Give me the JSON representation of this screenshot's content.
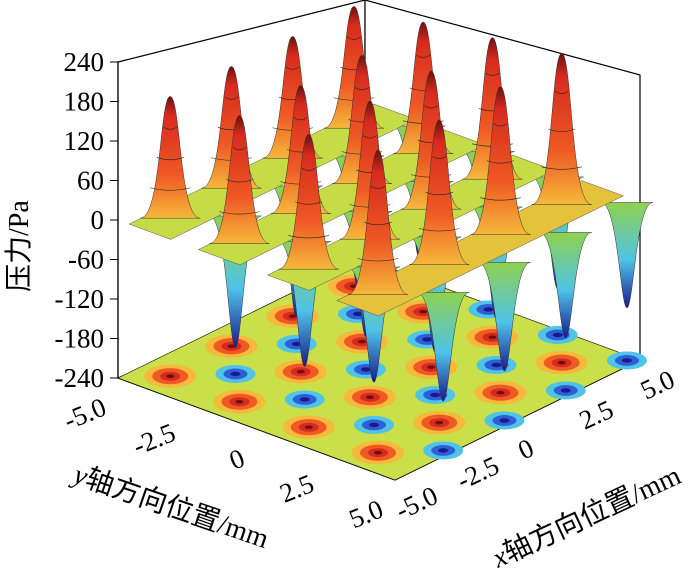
{
  "chart_data": {
    "type": "surface3d",
    "zlabel": "压力/Pa",
    "xlabel_var": "x",
    "xlabel_rest": "轴方向位置/mm",
    "ylabel_var": "y",
    "ylabel_rest": "轴方向位置/mm",
    "z_ticks": [
      "240",
      "180",
      "120",
      "60",
      "0",
      "-60",
      "-120",
      "-180",
      "-240"
    ],
    "x_ticks": [
      "-5.0",
      "-2.5",
      "0",
      "2.5",
      "5.0"
    ],
    "y_ticks": [
      "-5.0",
      "-2.5",
      "0",
      "2.5",
      "5.0"
    ],
    "xlim": [
      -5.0,
      5.0
    ],
    "ylim": [
      -5.0,
      5.0
    ],
    "zlim": [
      -240,
      240
    ],
    "peak_rows_y": [
      -4.0,
      -1.5,
      1.0,
      3.5
    ],
    "peak_cols_x": [
      -4.0,
      -1.5,
      1.0,
      3.5
    ],
    "peak_values": [
      [
        185,
        185,
        185,
        185
      ],
      [
        195,
        195,
        195,
        200
      ],
      [
        205,
        210,
        210,
        215
      ],
      [
        220,
        220,
        225,
        230
      ]
    ],
    "trough_values": [
      [
        -200,
        -200,
        -200,
        -200
      ],
      [
        -190,
        -190,
        -185,
        -185
      ],
      [
        -175,
        -175,
        -170,
        -170
      ],
      [
        -165,
        -165,
        -160,
        -160
      ]
    ],
    "colorscale": [
      "#1a1a8c",
      "#2f5fd6",
      "#4fc3e8",
      "#8fd14f",
      "#d8e63c",
      "#f6b93b",
      "#ef5a24",
      "#d62a1e",
      "#6b1010"
    ],
    "grid": true
  }
}
